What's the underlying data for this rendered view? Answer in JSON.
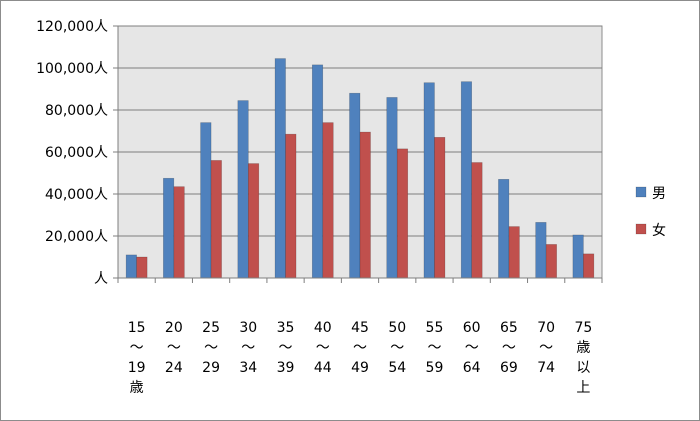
{
  "chart_data": {
    "type": "bar",
    "categories": [
      [
        "15",
        "～",
        "19",
        "歳"
      ],
      [
        "20",
        "～",
        "24"
      ],
      [
        "25",
        "～",
        "29"
      ],
      [
        "30",
        "～",
        "34"
      ],
      [
        "35",
        "～",
        "39"
      ],
      [
        "40",
        "～",
        "44"
      ],
      [
        "45",
        "～",
        "49"
      ],
      [
        "50",
        "～",
        "54"
      ],
      [
        "55",
        "～",
        "59"
      ],
      [
        "60",
        "～",
        "64"
      ],
      [
        "65",
        "～",
        "69"
      ],
      [
        "70",
        "～",
        "74"
      ],
      [
        "75",
        "歳",
        "以",
        "上"
      ]
    ],
    "series": [
      {
        "name": "男",
        "color": "#4f81bd",
        "values": [
          11000,
          47500,
          74000,
          84500,
          104500,
          101500,
          88000,
          86000,
          93000,
          93500,
          47000,
          26500,
          20500
        ]
      },
      {
        "name": "女",
        "color": "#c0504d",
        "values": [
          10000,
          43500,
          56000,
          54500,
          68500,
          74000,
          69500,
          61500,
          67000,
          55000,
          24500,
          16000,
          11500
        ]
      }
    ],
    "y_ticks": [
      "人",
      "20,000人",
      "40,000人",
      "60,000人",
      "80,000人",
      "100,000人",
      "120,000人"
    ],
    "ylim": [
      0,
      120000
    ],
    "grid": true,
    "legend_position": "right",
    "plot_background": "#e6e6e6"
  }
}
